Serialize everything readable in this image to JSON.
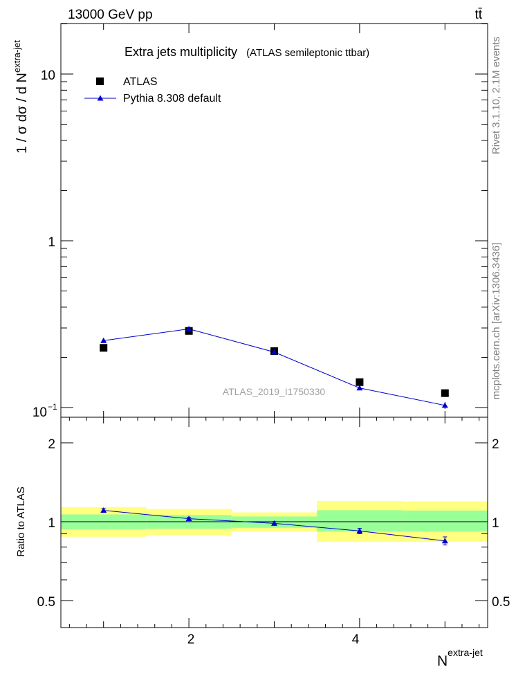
{
  "header": {
    "energy_label": "13000 GeV pp",
    "process_label": "tt̄"
  },
  "side_labels": {
    "rivet": "Rivet 3.1.10, 2.1M events",
    "mcplots": "mcplots.cern.ch [arXiv:1306.3436]"
  },
  "chart_data": [
    {
      "type": "scatter",
      "title": "Extra jets multiplicity",
      "subtitle": "(ATLAS semileptonic ttbar)",
      "ylabel": "1 / σ dσ / d N",
      "ylabel_sup": "extra-jet",
      "yscale": "log",
      "ylim": [
        0.095,
        20
      ],
      "xlim": [
        0.5,
        5.5
      ],
      "y_tick_labels": [
        "10",
        "1",
        "10"
      ],
      "y_tick_exp": "−1",
      "watermark": "ATLAS_2019_I1750330",
      "legend_position": "top-left",
      "categories": [
        1,
        2,
        3,
        4,
        5
      ],
      "series": [
        {
          "name": "ATLAS",
          "marker": "square",
          "color": "#000000",
          "x": [
            1,
            2,
            3,
            4,
            5
          ],
          "y": [
            0.228,
            0.288,
            0.218,
            0.142,
            0.122
          ]
        },
        {
          "name": "Pythia 8.308 default",
          "marker": "triangle",
          "color": "#0000cc",
          "x": [
            1,
            2,
            3,
            4,
            5
          ],
          "y": [
            0.252,
            0.296,
            0.215,
            0.131,
            0.103
          ],
          "yerr": [
            0.003,
            0.003,
            0.003,
            0.003,
            0.005
          ]
        }
      ]
    },
    {
      "type": "line",
      "ylabel": "Ratio to ATLAS",
      "xlabel": "N",
      "xlabel_sup": "extra-jet",
      "ylim": [
        0.42,
        2.4
      ],
      "xlim": [
        0.5,
        5.5
      ],
      "x_tick_labels": [
        "2",
        "4"
      ],
      "y_tick_labels": [
        "2",
        "1",
        "0.5"
      ],
      "reference_line": 1.0,
      "bands": {
        "x_edges": [
          0.5,
          1.5,
          2.5,
          3.5,
          4.5,
          5.5
        ],
        "yellow_color": "#ffff80",
        "green_color": "#99ff99",
        "yellow_lo": [
          0.876,
          0.886,
          0.916,
          0.838,
          0.838
        ],
        "yellow_hi": [
          1.138,
          1.118,
          1.085,
          1.2,
          1.195
        ],
        "green_lo": [
          0.935,
          0.94,
          0.948,
          0.917,
          0.917
        ],
        "green_hi": [
          1.066,
          1.06,
          1.047,
          1.106,
          1.103
        ]
      },
      "series": [
        {
          "name": "Pythia 8.308 default",
          "color": "#0000cc",
          "x": [
            1,
            2,
            3,
            4,
            5
          ],
          "y": [
            1.105,
            1.027,
            0.986,
            0.922,
            0.845
          ],
          "yerr": [
            0.018,
            0.012,
            0.016,
            0.022,
            0.03
          ]
        }
      ]
    }
  ]
}
